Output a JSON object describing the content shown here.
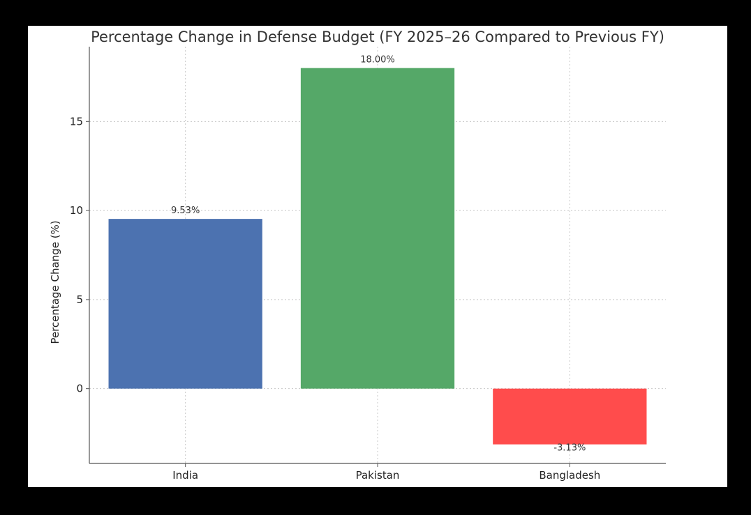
{
  "chart_data": {
    "type": "bar",
    "title": "Percentage Change in Defense Budget (FY 2025–26 Compared to Previous FY)",
    "xlabel": "",
    "ylabel": "Percentage Change (%)",
    "categories": [
      "India",
      "Pakistan",
      "Bangladesh"
    ],
    "values": [
      9.53,
      18.0,
      -3.13
    ],
    "data_labels": [
      "9.53%",
      "18.00%",
      "-3.13%"
    ],
    "colors": [
      "#4c72b0",
      "#55a868",
      "#ff4c4c"
    ],
    "ylim": [
      -4.2,
      19.2
    ],
    "yticks": [
      0,
      5,
      10,
      15
    ],
    "grid": true
  }
}
